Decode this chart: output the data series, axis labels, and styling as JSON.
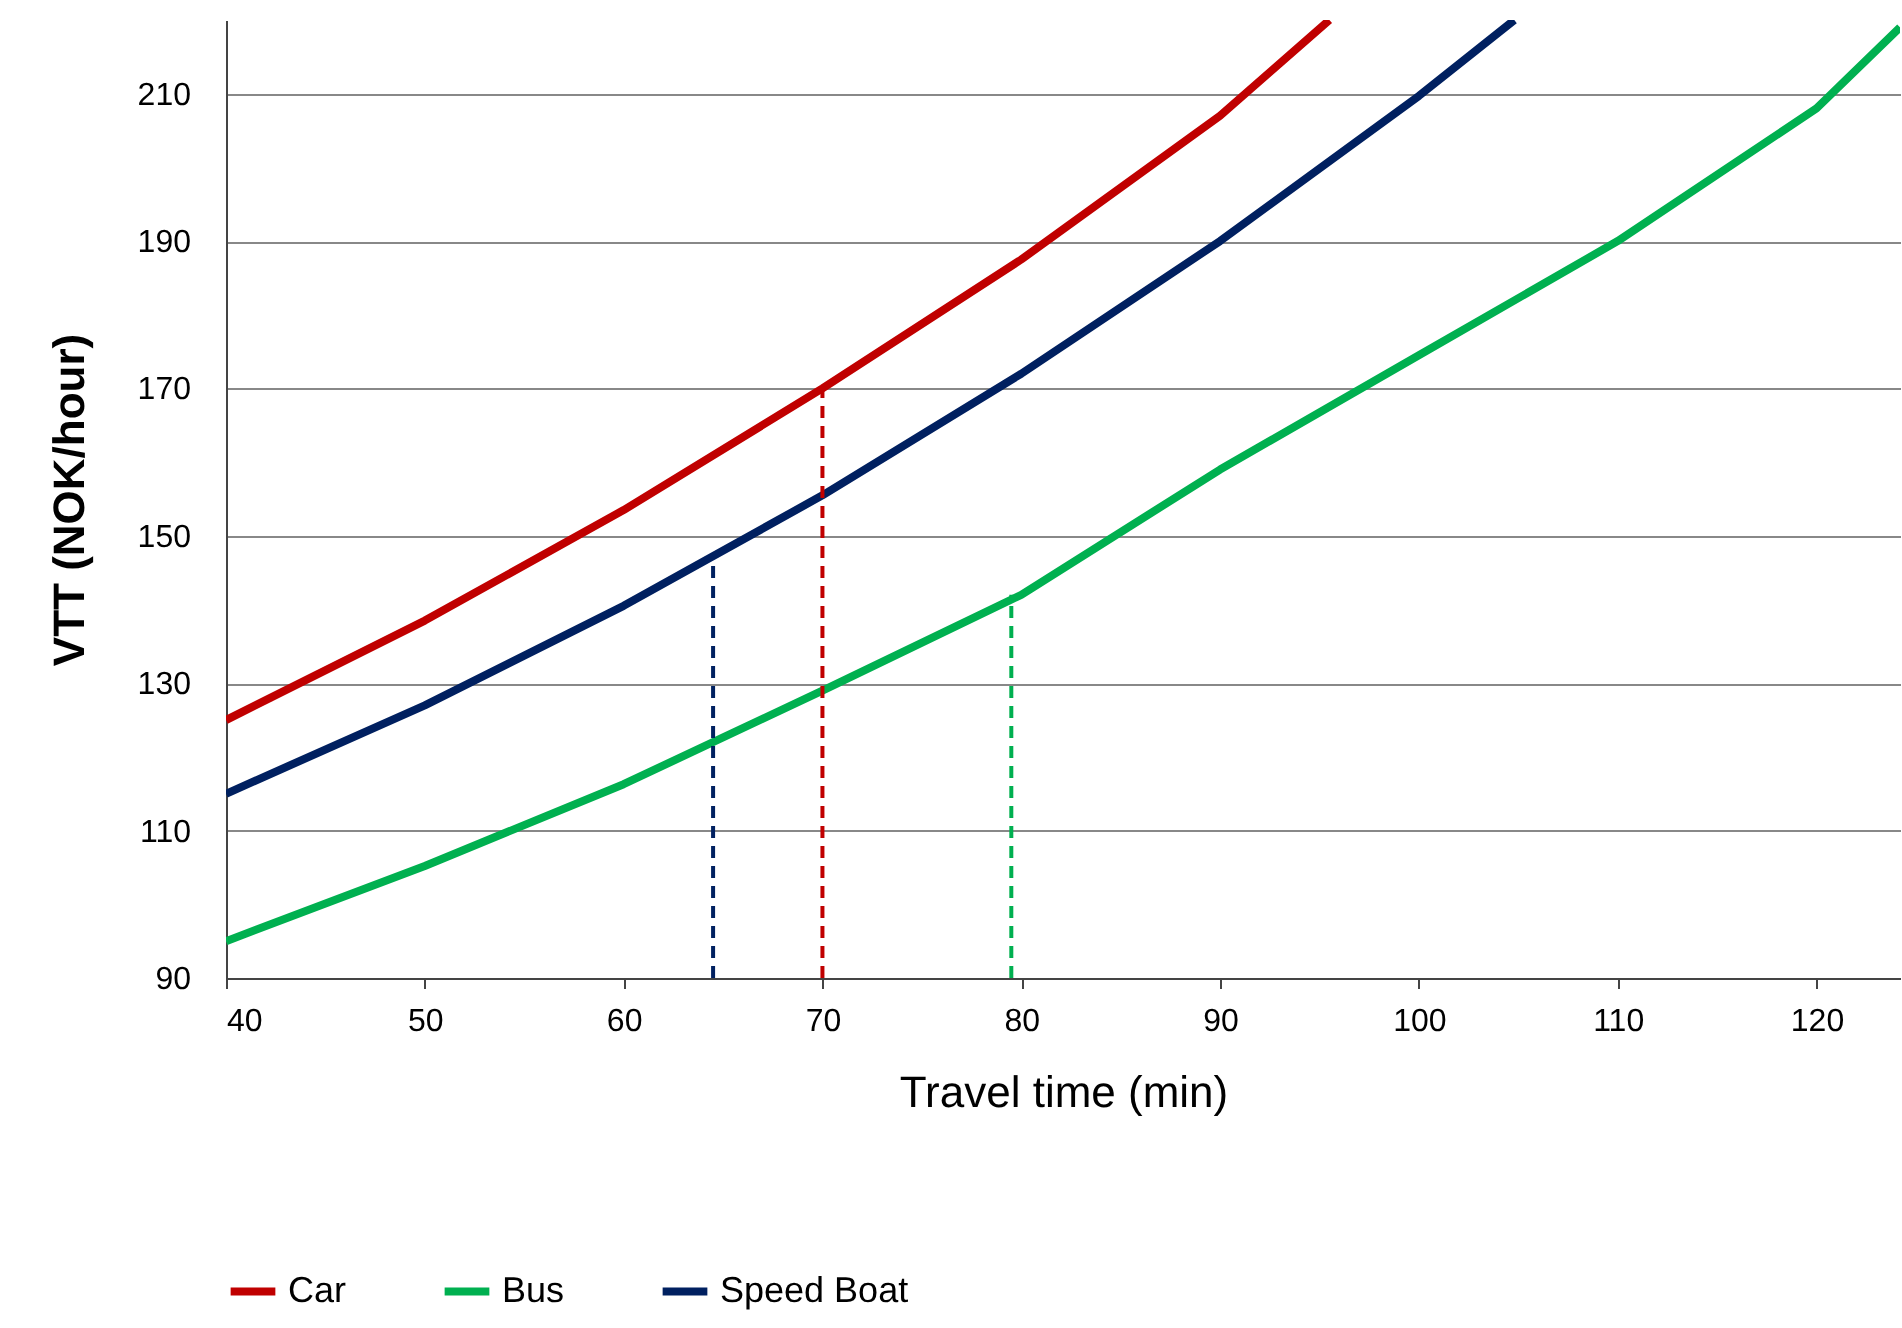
{
  "chart_data": {
    "type": "line",
    "xlabel": "Travel time (min)",
    "ylabel": "VTT (NOK/hour)",
    "xlim": [
      40,
      124.2
    ],
    "ylim": [
      90,
      220
    ],
    "xticks": [
      40,
      50,
      60,
      70,
      80,
      90,
      100,
      110,
      120
    ],
    "yticks": [
      90,
      110,
      130,
      150,
      170,
      190,
      210
    ],
    "grid": "y",
    "legend": "bottom",
    "marker": "none",
    "series": [
      {
        "name": "Car",
        "color": "#c00000",
        "x": [
          40,
          50,
          60,
          70,
          80,
          90,
          95.5
        ],
        "values": [
          125,
          138.5,
          153.5,
          170,
          187.5,
          207,
          220
        ]
      },
      {
        "name": "Bus",
        "color": "#00b050",
        "x": [
          40,
          50,
          60,
          70,
          80,
          90,
          100,
          110,
          120,
          124.2
        ],
        "values": [
          95,
          105.2,
          116.3,
          129,
          142,
          159,
          174.5,
          190,
          208,
          219
        ]
      },
      {
        "name": "Speed Boat",
        "color": "#002060",
        "x": [
          40,
          50,
          60,
          70,
          80,
          90,
          100,
          104.8
        ],
        "values": [
          115,
          127,
          140.5,
          155.5,
          172,
          190,
          209.7,
          220
        ]
      },
      {
        "type": "line",
        "line_style": "dashed",
        "color": "#002060",
        "x": [
          64.5,
          64.5
        ],
        "values": [
          90,
          147
        ]
      },
      {
        "type": "line",
        "line_style": "dashed",
        "color": "#c00000",
        "x": [
          70,
          70
        ],
        "values": [
          90,
          170
        ]
      },
      {
        "type": "line",
        "line_style": "dashed",
        "color": "#00b050",
        "x": [
          79.5,
          79.5
        ],
        "values": [
          90,
          142
        ]
      }
    ]
  }
}
